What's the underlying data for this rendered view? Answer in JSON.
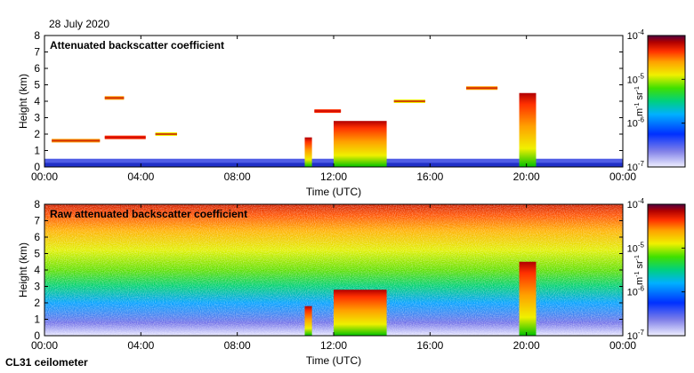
{
  "date_label": "28 July 2020",
  "instrument_label": "CL31 ceilometer",
  "colors": {
    "axis": "#000000",
    "scale": [
      "#f0f0ff",
      "#6060e0",
      "#0030ff",
      "#00b0ff",
      "#00d080",
      "#40e000",
      "#f0f000",
      "#ffa000",
      "#ff3000",
      "#c00000",
      "#800000",
      "#500040"
    ]
  },
  "chart_data": [
    {
      "type": "heatmap",
      "title": "Attenuated backscatter coefficient",
      "xlabel": "Time (UTC)",
      "ylabel": "Height (km)",
      "xlim": [
        0,
        24
      ],
      "ylim": [
        0,
        8
      ],
      "x_ticks": [
        "00:00",
        "04:00",
        "08:00",
        "12:00",
        "16:00",
        "20:00",
        "00:00"
      ],
      "y_ticks": [
        "0",
        "1",
        "2",
        "3",
        "4",
        "5",
        "6",
        "7",
        "8"
      ],
      "colorbar": {
        "label": "m",
        "label_exp": "-1",
        "label_tail": " sr",
        "label_exp2": "-1",
        "ticks": [
          "10",
          "10",
          "10",
          "10"
        ],
        "tick_exps": [
          "-4",
          "-5",
          "-6",
          "-7"
        ]
      },
      "features": [
        {
          "kind": "boundary_layer",
          "time_start": 0,
          "time_end": 24,
          "top_km": 0.5
        },
        {
          "kind": "cloud_layer",
          "time_start": 0.3,
          "time_end": 2.3,
          "height_km": 1.6
        },
        {
          "kind": "cloud_layer",
          "time_start": 2.5,
          "time_end": 4.2,
          "height_km": 1.8
        },
        {
          "kind": "cloud_layer",
          "time_start": 4.6,
          "time_end": 5.5,
          "height_km": 2.0
        },
        {
          "kind": "cloud_layer",
          "time_start": 2.5,
          "time_end": 3.3,
          "height_km": 4.2
        },
        {
          "kind": "cloud_layer",
          "time_start": 11.2,
          "time_end": 12.3,
          "height_km": 3.4
        },
        {
          "kind": "cloud_layer",
          "time_start": 14.5,
          "time_end": 15.8,
          "height_km": 4.0
        },
        {
          "kind": "cloud_layer",
          "time_start": 17.5,
          "time_end": 18.8,
          "height_km": 4.8
        },
        {
          "kind": "convective_column",
          "time_start": 10.8,
          "time_end": 11.1,
          "top_km": 1.8
        },
        {
          "kind": "convective_column",
          "time_start": 12.0,
          "time_end": 14.2,
          "top_km": 2.8
        },
        {
          "kind": "convective_column",
          "time_start": 19.7,
          "time_end": 20.4,
          "top_km": 4.5
        }
      ]
    },
    {
      "type": "heatmap",
      "title": "Raw attenuated backscatter coefficient",
      "xlabel": "Time (UTC)",
      "ylabel": "Height (km)",
      "xlim": [
        0,
        24
      ],
      "ylim": [
        0,
        8
      ],
      "x_ticks": [
        "00:00",
        "04:00",
        "08:00",
        "12:00",
        "16:00",
        "20:00",
        "00:00"
      ],
      "y_ticks": [
        "0",
        "1",
        "2",
        "3",
        "4",
        "5",
        "6",
        "7",
        "8"
      ],
      "colorbar": {
        "label": "m",
        "label_exp": "-1",
        "label_tail": " sr",
        "label_exp2": "-1",
        "ticks": [
          "10",
          "10",
          "10",
          "10"
        ],
        "tick_exps": [
          "-4",
          "-5",
          "-6",
          "-7"
        ]
      },
      "features": [
        {
          "kind": "noise_gradient",
          "time_start": 0,
          "time_end": 24,
          "description_level": "increasing_with_height"
        },
        {
          "kind": "convective_column",
          "time_start": 10.8,
          "time_end": 11.1,
          "top_km": 1.8
        },
        {
          "kind": "convective_column",
          "time_start": 12.0,
          "time_end": 14.2,
          "top_km": 2.8
        },
        {
          "kind": "convective_column",
          "time_start": 19.7,
          "time_end": 20.4,
          "top_km": 4.5
        }
      ]
    }
  ]
}
